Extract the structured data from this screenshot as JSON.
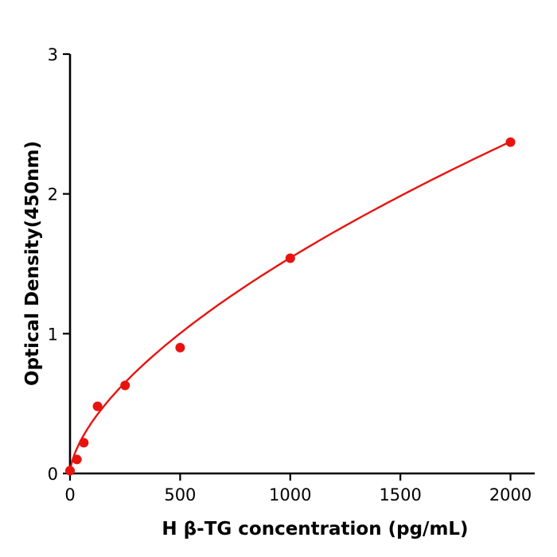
{
  "chart_data": {
    "type": "scatter",
    "title": "",
    "xlabel": "H  β-TG concentration (pg/mL)",
    "ylabel": "Optical Density(450nm)",
    "x": [
      0,
      31.25,
      62.5,
      125,
      250,
      500,
      1000,
      2000
    ],
    "y": [
      0.02,
      0.1,
      0.22,
      0.48,
      0.63,
      0.9,
      1.54,
      2.37
    ],
    "xlim": [
      0,
      2110
    ],
    "ylim": [
      0,
      3
    ],
    "xticks": [
      0,
      500,
      1000,
      1500,
      2000
    ],
    "yticks": [
      0,
      1,
      2,
      3
    ],
    "grid": false,
    "legend": "none",
    "marker_color": "#e8130f",
    "line_color": "#e8130f",
    "axis_color": "#000000",
    "fit": {
      "type": "power",
      "a": 0.021,
      "b": 0.622
    }
  }
}
